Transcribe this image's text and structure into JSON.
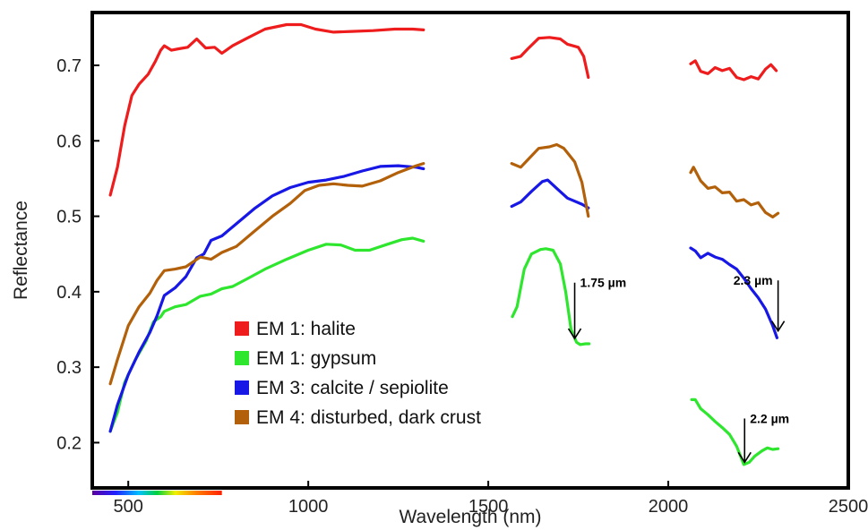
{
  "chart_data": {
    "type": "line",
    "xlabel": "Wavelength (nm)",
    "ylabel": "Reflectance",
    "xlim": [
      400,
      2500
    ],
    "ylim": [
      0.14,
      0.77
    ],
    "xticks": [
      500,
      1000,
      1500,
      2000,
      2500
    ],
    "yticks": [
      0.2,
      0.3,
      0.4,
      0.5,
      0.6,
      0.7
    ],
    "ytick_labels": [
      "0.2",
      "0.3",
      "0.4",
      "0.5",
      "0.6",
      "0.7"
    ],
    "grid": false,
    "legend_position": "bottom-left",
    "series": [
      {
        "name": "EM 1: halite",
        "color": "#ee1c1c",
        "segments": [
          [
            [
              450,
              0.528
            ],
            [
              470,
              0.565
            ],
            [
              490,
              0.62
            ],
            [
              510,
              0.66
            ],
            [
              530,
              0.675
            ],
            [
              555,
              0.688
            ],
            [
              575,
              0.705
            ],
            [
              590,
              0.72
            ],
            [
              600,
              0.726
            ],
            [
              620,
              0.72
            ],
            [
              640,
              0.722
            ],
            [
              665,
              0.724
            ],
            [
              690,
              0.735
            ],
            [
              715,
              0.723
            ],
            [
              740,
              0.724
            ],
            [
              760,
              0.716
            ],
            [
              790,
              0.726
            ],
            [
              830,
              0.736
            ],
            [
              880,
              0.748
            ],
            [
              940,
              0.754
            ],
            [
              980,
              0.754
            ],
            [
              1020,
              0.748
            ],
            [
              1070,
              0.744
            ],
            [
              1120,
              0.745
            ],
            [
              1180,
              0.746
            ],
            [
              1240,
              0.748
            ],
            [
              1290,
              0.748
            ],
            [
              1320,
              0.747
            ]
          ],
          [
            [
              1565,
              0.709
            ],
            [
              1590,
              0.712
            ],
            [
              1610,
              0.722
            ],
            [
              1640,
              0.736
            ],
            [
              1670,
              0.737
            ],
            [
              1700,
              0.735
            ],
            [
              1720,
              0.728
            ],
            [
              1750,
              0.724
            ],
            [
              1765,
              0.712
            ],
            [
              1778,
              0.684
            ]
          ],
          [
            [
              2062,
              0.702
            ],
            [
              2075,
              0.706
            ],
            [
              2090,
              0.692
            ],
            [
              2110,
              0.689
            ],
            [
              2130,
              0.697
            ],
            [
              2150,
              0.693
            ],
            [
              2170,
              0.696
            ],
            [
              2190,
              0.684
            ],
            [
              2210,
              0.681
            ],
            [
              2230,
              0.685
            ],
            [
              2250,
              0.682
            ],
            [
              2270,
              0.695
            ],
            [
              2285,
              0.701
            ],
            [
              2300,
              0.693
            ]
          ]
        ]
      },
      {
        "name": "EM 1: gypsum",
        "color": "#2ee62e",
        "segments": [
          [
            [
              450,
              0.215
            ],
            [
              470,
              0.24
            ],
            [
              490,
              0.28
            ],
            [
              520,
              0.31
            ],
            [
              550,
              0.335
            ],
            [
              570,
              0.36
            ],
            [
              590,
              0.367
            ],
            [
              600,
              0.374
            ],
            [
              630,
              0.38
            ],
            [
              660,
              0.383
            ],
            [
              700,
              0.394
            ],
            [
              730,
              0.397
            ],
            [
              760,
              0.404
            ],
            [
              790,
              0.407
            ],
            [
              830,
              0.417
            ],
            [
              880,
              0.43
            ],
            [
              940,
              0.443
            ],
            [
              1000,
              0.455
            ],
            [
              1050,
              0.463
            ],
            [
              1090,
              0.462
            ],
            [
              1130,
              0.455
            ],
            [
              1170,
              0.455
            ],
            [
              1220,
              0.463
            ],
            [
              1260,
              0.469
            ],
            [
              1290,
              0.471
            ],
            [
              1320,
              0.467
            ]
          ],
          [
            [
              1567,
              0.367
            ],
            [
              1580,
              0.38
            ],
            [
              1600,
              0.43
            ],
            [
              1620,
              0.45
            ],
            [
              1645,
              0.456
            ],
            [
              1660,
              0.457
            ],
            [
              1680,
              0.455
            ],
            [
              1700,
              0.437
            ],
            [
              1715,
              0.4
            ],
            [
              1730,
              0.35
            ],
            [
              1745,
              0.333
            ],
            [
              1755,
              0.33
            ],
            [
              1770,
              0.331
            ],
            [
              1780,
              0.331
            ]
          ],
          [
            [
              2065,
              0.257
            ],
            [
              2075,
              0.257
            ],
            [
              2090,
              0.245
            ],
            [
              2110,
              0.237
            ],
            [
              2130,
              0.228
            ],
            [
              2150,
              0.22
            ],
            [
              2170,
              0.211
            ],
            [
              2190,
              0.195
            ],
            [
              2210,
              0.171
            ],
            [
              2225,
              0.174
            ],
            [
              2240,
              0.182
            ],
            [
              2260,
              0.189
            ],
            [
              2275,
              0.193
            ],
            [
              2290,
              0.191
            ],
            [
              2305,
              0.192
            ]
          ]
        ]
      },
      {
        "name": "EM 3: calcite / sepiolite",
        "color": "#1717e6",
        "segments": [
          [
            [
              450,
              0.215
            ],
            [
              470,
              0.25
            ],
            [
              500,
              0.29
            ],
            [
              530,
              0.32
            ],
            [
              560,
              0.346
            ],
            [
              580,
              0.368
            ],
            [
              600,
              0.395
            ],
            [
              630,
              0.405
            ],
            [
              660,
              0.42
            ],
            [
              690,
              0.445
            ],
            [
              710,
              0.45
            ],
            [
              730,
              0.468
            ],
            [
              760,
              0.474
            ],
            [
              800,
              0.49
            ],
            [
              850,
              0.51
            ],
            [
              900,
              0.527
            ],
            [
              950,
              0.538
            ],
            [
              1000,
              0.545
            ],
            [
              1050,
              0.548
            ],
            [
              1100,
              0.553
            ],
            [
              1150,
              0.56
            ],
            [
              1200,
              0.566
            ],
            [
              1250,
              0.567
            ],
            [
              1300,
              0.565
            ],
            [
              1320,
              0.563
            ]
          ],
          [
            [
              1565,
              0.513
            ],
            [
              1590,
              0.519
            ],
            [
              1620,
              0.533
            ],
            [
              1650,
              0.546
            ],
            [
              1665,
              0.548
            ],
            [
              1690,
              0.537
            ],
            [
              1720,
              0.524
            ],
            [
              1760,
              0.516
            ],
            [
              1778,
              0.511
            ]
          ],
          [
            [
              2062,
              0.458
            ],
            [
              2075,
              0.454
            ],
            [
              2090,
              0.445
            ],
            [
              2110,
              0.451
            ],
            [
              2130,
              0.446
            ],
            [
              2150,
              0.443
            ],
            [
              2170,
              0.436
            ],
            [
              2190,
              0.43
            ],
            [
              2210,
              0.418
            ],
            [
              2230,
              0.404
            ],
            [
              2250,
              0.392
            ],
            [
              2270,
              0.377
            ],
            [
              2290,
              0.355
            ],
            [
              2302,
              0.339
            ]
          ]
        ]
      },
      {
        "name": "EM 4: disturbed, dark crust",
        "color": "#b2600a",
        "segments": [
          [
            [
              450,
              0.278
            ],
            [
              470,
              0.31
            ],
            [
              500,
              0.355
            ],
            [
              530,
              0.38
            ],
            [
              560,
              0.398
            ],
            [
              580,
              0.415
            ],
            [
              600,
              0.428
            ],
            [
              630,
              0.43
            ],
            [
              660,
              0.433
            ],
            [
              700,
              0.446
            ],
            [
              730,
              0.443
            ],
            [
              760,
              0.452
            ],
            [
              800,
              0.46
            ],
            [
              850,
              0.48
            ],
            [
              900,
              0.5
            ],
            [
              950,
              0.517
            ],
            [
              990,
              0.534
            ],
            [
              1030,
              0.541
            ],
            [
              1070,
              0.543
            ],
            [
              1110,
              0.541
            ],
            [
              1150,
              0.54
            ],
            [
              1200,
              0.547
            ],
            [
              1250,
              0.558
            ],
            [
              1300,
              0.567
            ],
            [
              1320,
              0.57
            ]
          ],
          [
            [
              1565,
              0.57
            ],
            [
              1590,
              0.565
            ],
            [
              1610,
              0.575
            ],
            [
              1640,
              0.59
            ],
            [
              1670,
              0.592
            ],
            [
              1690,
              0.595
            ],
            [
              1710,
              0.59
            ],
            [
              1740,
              0.572
            ],
            [
              1760,
              0.545
            ],
            [
              1778,
              0.5
            ]
          ],
          [
            [
              2062,
              0.558
            ],
            [
              2070,
              0.565
            ],
            [
              2090,
              0.547
            ],
            [
              2110,
              0.537
            ],
            [
              2130,
              0.539
            ],
            [
              2150,
              0.531
            ],
            [
              2170,
              0.532
            ],
            [
              2190,
              0.52
            ],
            [
              2210,
              0.522
            ],
            [
              2230,
              0.515
            ],
            [
              2250,
              0.518
            ],
            [
              2270,
              0.505
            ],
            [
              2290,
              0.499
            ],
            [
              2305,
              0.504
            ]
          ]
        ]
      }
    ],
    "annotations": [
      {
        "text": "1.75 µm",
        "x": 1740,
        "y_from": 0.412,
        "y_to": 0.338,
        "side": "right"
      },
      {
        "text": "2.3 µm",
        "x": 2305,
        "y_from": 0.415,
        "y_to": 0.348,
        "side": "left"
      },
      {
        "text": "2.2 µm",
        "x": 2212,
        "y_from": 0.232,
        "y_to": 0.174,
        "side": "right"
      }
    ]
  }
}
